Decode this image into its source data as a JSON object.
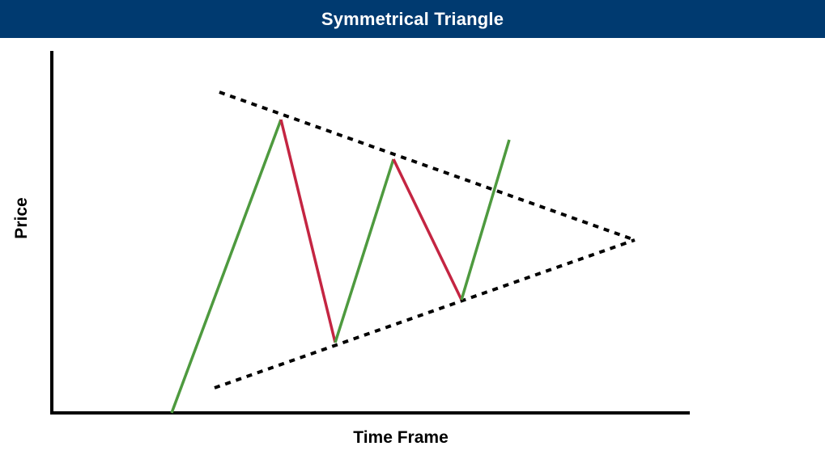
{
  "header": {
    "title": "Symmetrical Triangle"
  },
  "axes": {
    "xlabel": "Time Frame",
    "ylabel": "Price"
  },
  "colors": {
    "header_bg": "#003a70",
    "up_leg": "#4e9a3f",
    "down_leg": "#c42542",
    "trendline": "#000000",
    "axis": "#000000"
  }
}
